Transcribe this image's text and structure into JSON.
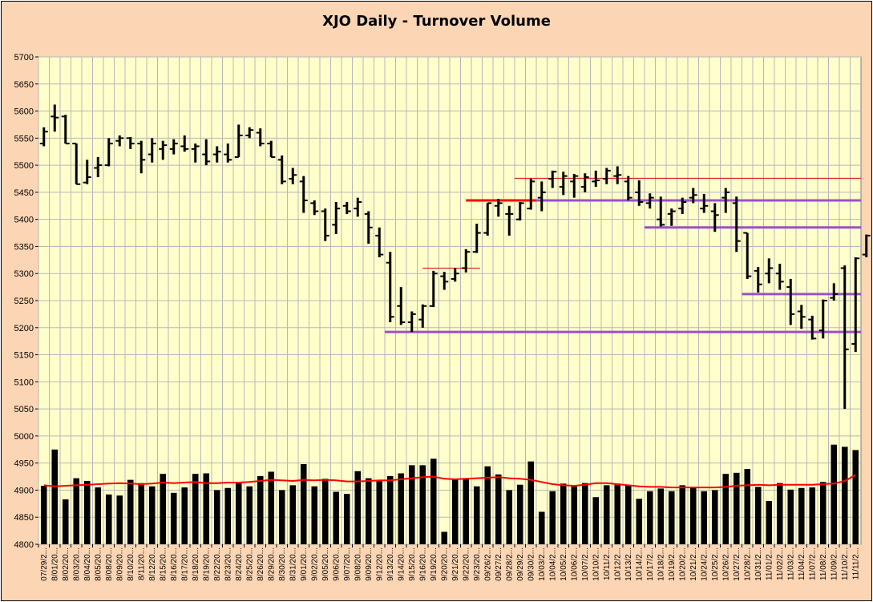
{
  "chart_data": {
    "type": "ohlc+bar",
    "title": "XJO Daily - Turnover Volume",
    "ylim": [
      4800,
      5700
    ],
    "ytick_step": 50,
    "grid": true,
    "yticks": [
      "4800",
      "4850",
      "4900",
      "4950",
      "5000",
      "5050",
      "5100",
      "5150",
      "5200",
      "5250",
      "5300",
      "5350",
      "5400",
      "5450",
      "5500",
      "5550",
      "5600",
      "5650",
      "5700"
    ],
    "x": [
      "07/29/2...",
      "8/01/20...",
      "8/02/20...",
      "8/03/20...",
      "8/04/20...",
      "8/05/20...",
      "8/08/20...",
      "8/09/20...",
      "8/10/20...",
      "8/11/20...",
      "8/12/20...",
      "8/15/20...",
      "8/16/20...",
      "8/17/20...",
      "8/18/20...",
      "8/19/20...",
      "8/22/20...",
      "8/23/20...",
      "8/24/20...",
      "8/25/20...",
      "8/26/20...",
      "8/29/20...",
      "8/30/20...",
      "8/31/20...",
      "9/01/20...",
      "9/02/20...",
      "9/05/20...",
      "9/06/20...",
      "9/07/20...",
      "9/08/20...",
      "9/09/20...",
      "9/12/20...",
      "9/13/20...",
      "9/14/20...",
      "9/15/20...",
      "9/16/20...",
      "9/19/20...",
      "9/20/20...",
      "9/21/20...",
      "9/22/20...",
      "9/23/20...",
      "09/26/2...",
      "09/27/2...",
      "09/28/2...",
      "09/29/2...",
      "09/30/2...",
      "10/03/2...",
      "10/04/2...",
      "10/05/2...",
      "10/06/2...",
      "10/07/2...",
      "10/10/2...",
      "10/11/2...",
      "10/12/2...",
      "10/13/2...",
      "10/14/2...",
      "10/17/2...",
      "10/18/2...",
      "10/19/2...",
      "10/20/2...",
      "10/21/2...",
      "10/24/2...",
      "10/25/2...",
      "10/26/2...",
      "10/27/2...",
      "10/28/2...",
      "10/31/2...",
      "11/01/2...",
      "11/02/2...",
      "11/03/2...",
      "11/04/2...",
      "11/07/2...",
      "11/08/2...",
      "11/09/2...",
      "11/10/2...",
      "11/11/2..."
    ],
    "ohlc": [
      [
        5540,
        5570,
        5535,
        5562
      ],
      [
        5590,
        5612,
        5562,
        5588
      ],
      [
        5590,
        5593,
        5540,
        5540
      ],
      [
        5540,
        5540,
        5465,
        5465
      ],
      [
        5468,
        5510,
        5465,
        5478
      ],
      [
        5495,
        5515,
        5478,
        5500
      ],
      [
        5500,
        5550,
        5498,
        5540
      ],
      [
        5545,
        5555,
        5535,
        5550
      ],
      [
        5550,
        5552,
        5530,
        5540
      ],
      [
        5540,
        5545,
        5485,
        5510
      ],
      [
        5520,
        5550,
        5505,
        5540
      ],
      [
        5530,
        5545,
        5510,
        5537
      ],
      [
        5530,
        5548,
        5520,
        5540
      ],
      [
        5535,
        5555,
        5525,
        5530
      ],
      [
        5530,
        5540,
        5505,
        5535
      ],
      [
        5520,
        5548,
        5500,
        5507
      ],
      [
        5520,
        5535,
        5505,
        5525
      ],
      [
        5520,
        5540,
        5505,
        5510
      ],
      [
        5515,
        5575,
        5515,
        5555
      ],
      [
        5555,
        5570,
        5550,
        5565
      ],
      [
        5560,
        5568,
        5535,
        5540
      ],
      [
        5540,
        5545,
        5515,
        5515
      ],
      [
        5510,
        5518,
        5465,
        5470
      ],
      [
        5475,
        5495,
        5465,
        5482
      ],
      [
        5470,
        5480,
        5412,
        5435
      ],
      [
        5430,
        5435,
        5408,
        5415
      ],
      [
        5415,
        5420,
        5360,
        5370
      ],
      [
        5390,
        5432,
        5373,
        5420
      ],
      [
        5425,
        5432,
        5410,
        5415
      ],
      [
        5420,
        5440,
        5405,
        5432
      ],
      [
        5410,
        5415,
        5355,
        5385
      ],
      [
        5370,
        5385,
        5330,
        5335
      ],
      [
        5320,
        5340,
        5210,
        5220
      ],
      [
        5240,
        5275,
        5205,
        5210
      ],
      [
        5210,
        5230,
        5192,
        5225
      ],
      [
        5215,
        5243,
        5200,
        5240
      ],
      [
        5240,
        5305,
        5238,
        5300
      ],
      [
        5295,
        5303,
        5270,
        5285
      ],
      [
        5290,
        5310,
        5285,
        5300
      ],
      [
        5310,
        5345,
        5302,
        5340
      ],
      [
        5340,
        5392,
        5338,
        5375
      ],
      [
        5375,
        5430,
        5370,
        5430
      ],
      [
        5425,
        5438,
        5405,
        5430
      ],
      [
        5410,
        5425,
        5370,
        5410
      ],
      [
        5400,
        5432,
        5398,
        5430
      ],
      [
        5420,
        5475,
        5418,
        5470
      ],
      [
        5440,
        5470,
        5415,
        5450
      ],
      [
        5475,
        5490,
        5458,
        5488
      ],
      [
        5460,
        5488,
        5445,
        5480
      ],
      [
        5470,
        5484,
        5440,
        5480
      ],
      [
        5460,
        5485,
        5450,
        5478
      ],
      [
        5470,
        5490,
        5460,
        5472
      ],
      [
        5475,
        5495,
        5465,
        5490
      ],
      [
        5480,
        5498,
        5465,
        5482
      ],
      [
        5470,
        5480,
        5435,
        5440
      ],
      [
        5450,
        5472,
        5425,
        5432
      ],
      [
        5430,
        5448,
        5420,
        5440
      ],
      [
        5400,
        5442,
        5387,
        5390
      ],
      [
        5410,
        5420,
        5388,
        5415
      ],
      [
        5420,
        5440,
        5410,
        5432
      ],
      [
        5440,
        5458,
        5430,
        5445
      ],
      [
        5420,
        5447,
        5412,
        5425
      ],
      [
        5415,
        5430,
        5377,
        5408
      ],
      [
        5440,
        5458,
        5412,
        5450
      ],
      [
        5430,
        5442,
        5340,
        5360
      ],
      [
        5375,
        5375,
        5290,
        5295
      ],
      [
        5305,
        5312,
        5265,
        5280
      ],
      [
        5300,
        5328,
        5282,
        5310
      ],
      [
        5300,
        5318,
        5270,
        5285
      ],
      [
        5275,
        5290,
        5205,
        5225
      ],
      [
        5230,
        5242,
        5198,
        5220
      ],
      [
        5215,
        5222,
        5178,
        5180
      ],
      [
        5195,
        5252,
        5180,
        5250
      ],
      [
        5255,
        5282,
        5250,
        5262
      ],
      [
        5310,
        5315,
        5050,
        5160
      ],
      [
        5170,
        5330,
        5155,
        5328
      ],
      [
        5335,
        5372,
        5330,
        5370
      ]
    ],
    "volume": [
      4908,
      4975,
      4883,
      4922,
      4917,
      4905,
      4892,
      4890,
      4919,
      4913,
      4907,
      4930,
      4895,
      4905,
      4930,
      4931,
      4900,
      4904,
      4915,
      4907,
      4926,
      4934,
      4900,
      4909,
      4948,
      4907,
      4921,
      4897,
      4893,
      4935,
      4922,
      4918,
      4926,
      4931,
      4946,
      4946,
      4958,
      4823,
      4921,
      4920,
      4907,
      4944,
      4929,
      4900,
      4910,
      4953,
      4860,
      4898,
      4912,
      4907,
      4913,
      4887,
      4909,
      4912,
      4908,
      4884,
      4898,
      4903,
      4898,
      4909,
      4905,
      4898,
      4900,
      4930,
      4932,
      4939,
      4906,
      4880,
      4913,
      4901,
      4904,
      4905,
      4915,
      4984,
      4980,
      4974
    ],
    "ma_line": {
      "color": "#ff0000",
      "values": [
        4909,
        4907,
        4908,
        4909,
        4910,
        4911,
        4912,
        4913,
        4912,
        4911,
        4912,
        4914,
        4913,
        4914,
        4915,
        4913,
        4913,
        4914,
        4914,
        4915,
        4917,
        4919,
        4918,
        4917,
        4919,
        4918,
        4919,
        4918,
        4916,
        4916,
        4917,
        4918,
        4918,
        4920,
        4922,
        4924,
        4925,
        4921,
        4920,
        4921,
        4922,
        4923,
        4924,
        4922,
        4921,
        4919,
        4915,
        4911,
        4909,
        4908,
        4910,
        4913,
        4913,
        4911,
        4909,
        4907,
        4906,
        4906,
        4905,
        4905,
        4905,
        4905,
        4905,
        4906,
        4908,
        4909,
        4910,
        4909,
        4910,
        4910,
        4910,
        4910,
        4911,
        4912,
        4917,
        4928
      ]
    },
    "reference_lines": [
      {
        "color": "#9b50c8",
        "thick": true,
        "y": 5192,
        "from": 32,
        "to": 76
      },
      {
        "color": "#9b50c8",
        "thick": true,
        "y": 5435,
        "from": 40,
        "to": 76
      },
      {
        "color": "#9b50c8",
        "thick": true,
        "y": 5385,
        "from": 56,
        "to": 76
      },
      {
        "color": "#9b50c8",
        "thick": true,
        "y": 5262,
        "from": 65,
        "to": 76
      },
      {
        "color": "#dd0000",
        "thick": false,
        "y": 5476,
        "from": 44,
        "to": 76
      },
      {
        "color": "#ff0000",
        "thick": true,
        "y": 5435,
        "from": 39.5,
        "to": 46
      },
      {
        "color": "#dd0000",
        "thick": false,
        "y": 5310,
        "from": 35.5,
        "to": 40.8
      }
    ]
  }
}
